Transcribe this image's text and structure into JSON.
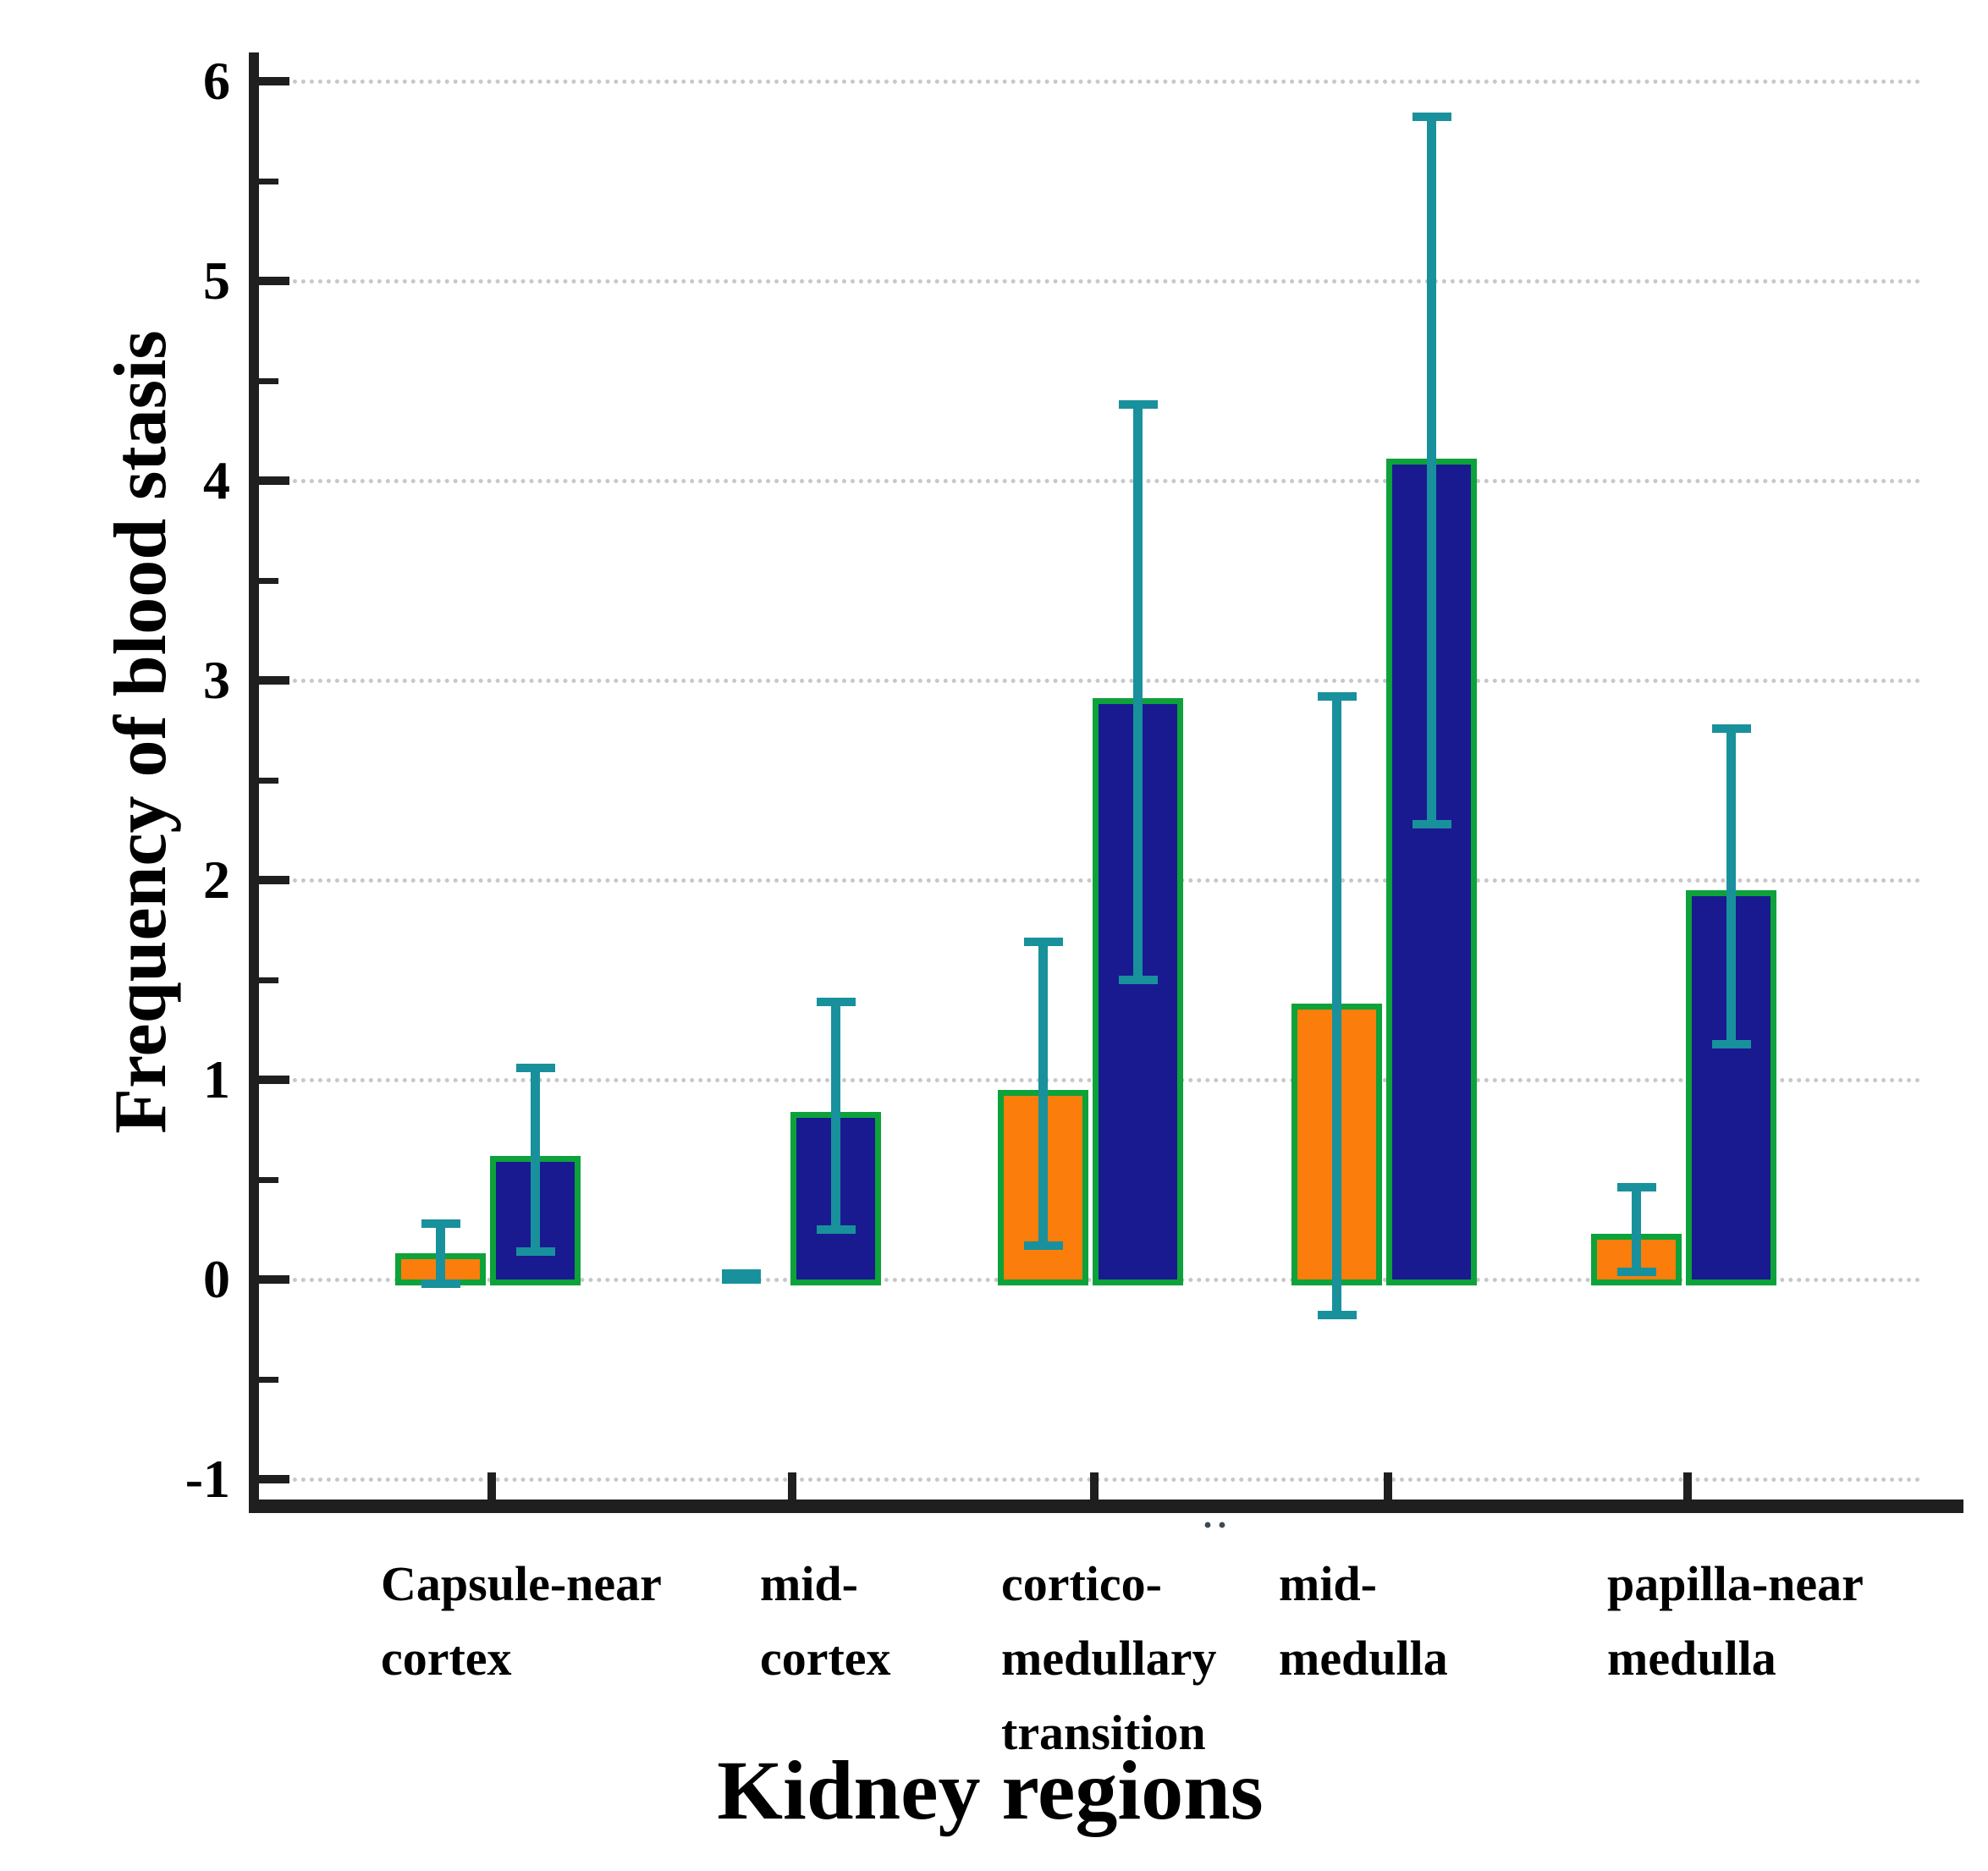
{
  "chart_data": {
    "type": "bar",
    "title": "",
    "xlabel": "Kidney regions",
    "ylabel": "Frequency of blood stasis",
    "ylim": [
      -1,
      6
    ],
    "y_major_ticks": [
      6,
      5,
      4,
      3,
      2,
      1,
      0,
      -1
    ],
    "y_tick_labels": [
      "6",
      "5",
      "4",
      "3",
      "2",
      "1",
      "0",
      "-1"
    ],
    "y_minor_ticks": [
      5.5,
      4.5,
      3.5,
      2.5,
      1.5,
      0.5,
      -0.5
    ],
    "grid": {
      "horizontal": "dotted",
      "at": [
        6,
        5,
        4,
        3,
        2,
        1,
        0,
        -1
      ],
      "color": "#c8c8c8"
    },
    "legend_position": "none",
    "categories": [
      {
        "id": "capsule-near-cortex",
        "label": "Capsule-near cortex",
        "lines": [
          "Capsule-near",
          "cortex"
        ]
      },
      {
        "id": "mid-cortex",
        "label": "mid-cortex",
        "lines": [
          "mid-",
          "cortex"
        ]
      },
      {
        "id": "cortico-medullary-transition",
        "label": "cortico-medullary transition",
        "lines": [
          "cortico-",
          "medullary",
          "transition"
        ]
      },
      {
        "id": "mid-medulla",
        "label": "mid-medulla",
        "lines": [
          "mid-",
          "medulla"
        ]
      },
      {
        "id": "papilla-near-medulla",
        "label": "papilla-near medulla",
        "lines": [
          "papilla-near",
          "medulla"
        ]
      }
    ],
    "series": [
      {
        "name": "orange",
        "fill": "#FB7D0B",
        "values": [
          0.1,
          0.01,
          0.92,
          1.35,
          0.2
        ],
        "err_low": [
          -0.02,
          0.0,
          0.17,
          -0.18,
          0.04
        ],
        "err_high": [
          0.28,
          0.03,
          1.69,
          2.92,
          0.46
        ]
      },
      {
        "name": "navy",
        "fill": "#1A1A90",
        "values": [
          0.59,
          0.81,
          2.88,
          4.08,
          1.92
        ],
        "err_low": [
          0.14,
          0.25,
          1.5,
          2.28,
          1.18
        ],
        "err_high": [
          1.06,
          1.39,
          4.38,
          5.82,
          2.76
        ]
      }
    ],
    "bar_border_color": "#0EA23A",
    "error_bar_color": "#18919D",
    "axis_color": "#1f1f1f",
    "text_color": "#000000",
    "annotation_marks": [
      {
        "text": "··",
        "near_category": "mid-medulla"
      }
    ]
  }
}
